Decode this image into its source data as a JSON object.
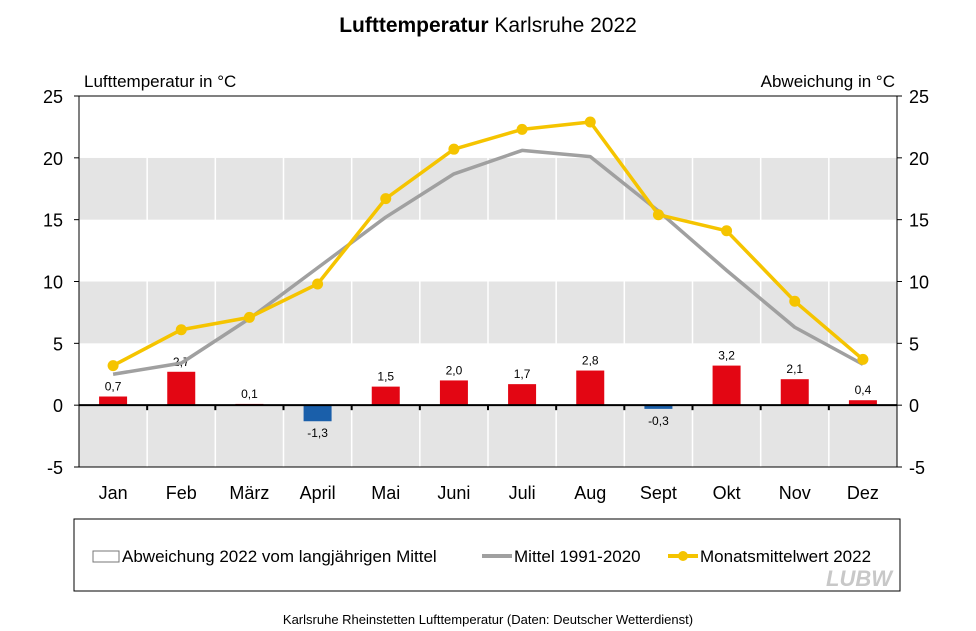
{
  "chart_data": {
    "type": "bar+line",
    "title_bold": "Lufttemperatur",
    "title_rest": "Karlsruhe 2022",
    "ylabel_left": "Lufttemperatur  in °C",
    "ylabel_right": "Abweichung  in °C",
    "ylim": [
      -5,
      25
    ],
    "yticks": [
      "-5",
      "0",
      "5",
      "10",
      "15",
      "20",
      "25"
    ],
    "categories": [
      "Jan",
      "Feb",
      "März",
      "April",
      "Mai",
      "Juni",
      "Juli",
      "Aug",
      "Sept",
      "Okt",
      "Nov",
      "Dez"
    ],
    "series": [
      {
        "name": "Abweichung 2022 vom langjährigen Mittel",
        "type": "bar",
        "values": [
          0.7,
          2.7,
          0.1,
          -1.3,
          1.5,
          2.0,
          1.7,
          2.8,
          -0.3,
          3.2,
          2.1,
          0.4
        ],
        "labels": [
          "0,7",
          "2,7",
          "0,1",
          "-1,3",
          "1,5",
          "2,0",
          "1,7",
          "2,8",
          "-0,3",
          "3,2",
          "2,1",
          "0,4"
        ],
        "color_pos": "#e30613",
        "color_neg": "#1a5faa"
      },
      {
        "name": "Mittel 1991-2020",
        "type": "line",
        "values": [
          2.5,
          3.4,
          7.0,
          11.1,
          15.2,
          18.7,
          20.6,
          20.1,
          15.7,
          10.9,
          6.3,
          3.3
        ],
        "color": "#a0a0a0"
      },
      {
        "name": "Monatsmittelwert 2022",
        "type": "line",
        "markers": true,
        "values": [
          3.2,
          6.1,
          7.1,
          9.8,
          16.7,
          20.7,
          22.3,
          22.9,
          15.4,
          14.1,
          8.4,
          3.7
        ],
        "color": "#f5c400"
      }
    ],
    "grid": "alternating bands",
    "legend_position": "bottom",
    "source": "Karlsruhe Rheinstetten Lufttemperatur (Daten: Deutscher Wetterdienst)",
    "logo": "LUBW"
  }
}
